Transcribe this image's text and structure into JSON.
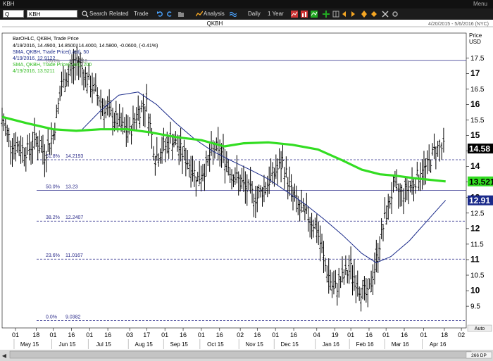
{
  "window": {
    "title": "KBH",
    "menu_label": "Menu"
  },
  "toolbar": {
    "quote_field": "Q",
    "symbol_value": "KBH",
    "search_label": "Search",
    "related_label": "Related",
    "trade_label": "Trade",
    "analysis_label": "Analysis",
    "interval_label": "Daily",
    "range_label": "1 Year"
  },
  "header": {
    "symbol": "QKBH",
    "date_range": "4/20/2015 - 5/6/2016 (NYC)"
  },
  "legend": {
    "line1": "BarOHLC, QKBH, Trade Price",
    "line2": "4/19/2016, 14.4900, 14.8500, 14.4000, 14.5800, -0.0600, (-0.41%)",
    "line3": "SMA, QKBH, Trade Price(Last), 50",
    "line4": "4/19/2016, 12.9122",
    "line5": "SMA, QKBH, Trade Price(Last), 200",
    "line6": "4/19/2016, 13.5211"
  },
  "axis": {
    "price_label": "Price",
    "currency_label": "USD",
    "auto_label": "Auto",
    "dp_label": "266 DP"
  },
  "badges": [
    {
      "text": "14.58",
      "value": 14.58,
      "bg": "#000000",
      "fg": "#ffffff"
    },
    {
      "text": "13.521",
      "value": 13.521,
      "bg": "#33dd22",
      "fg": "#000000"
    },
    {
      "text": "12.91",
      "value": 12.91,
      "bg": "#1a2a8a",
      "fg": "#ffffff"
    }
  ],
  "fibonacci": [
    {
      "pct": "0.0%",
      "value": "9.0382",
      "y": 9.0382,
      "dashed": true
    },
    {
      "pct": "23.6%",
      "value": "11.0167",
      "y": 11.0167,
      "dashed": true
    },
    {
      "pct": "38.2%",
      "value": "12.2407",
      "y": 12.2407,
      "dashed": true
    },
    {
      "pct": "50.0%",
      "value": "13.23",
      "y": 13.23,
      "dashed": false
    },
    {
      "pct": "61.8%",
      "value": "14.2193",
      "y": 14.2193,
      "dashed": true
    },
    {
      "pct": "100.0%",
      "value": "17.4218",
      "y": 17.4218,
      "dashed": false
    }
  ],
  "colors": {
    "bars": "#000000",
    "sma50": "#1a2a8a",
    "sma200": "#33dd22",
    "fib": "#2b2b8a"
  },
  "chart_data": {
    "type": "ohlc",
    "title": "QKBH",
    "ylim": [
      8.8,
      18.3
    ],
    "y_ticks": [
      9.5,
      10,
      10.5,
      11,
      11.5,
      12,
      12.5,
      13,
      13.5,
      14,
      14.5,
      15,
      15.5,
      16,
      16.5,
      17,
      17.5
    ],
    "y_tick_labels": [
      "9.5",
      "10",
      "10.5",
      "11",
      "11.5",
      "12",
      "12.5",
      "13",
      "13.5",
      "14",
      "14.5",
      "15",
      "15.5",
      "16",
      "16.5",
      "17",
      "17.5"
    ],
    "x_range": [
      "2015-04-20",
      "2016-05-06"
    ],
    "x_ticks": [
      {
        "date": "2015-05-01",
        "label": "01",
        "month": "May 15"
      },
      {
        "date": "2015-05-18",
        "label": "18"
      },
      {
        "date": "2015-06-01",
        "label": "01",
        "month": "Jun 15"
      },
      {
        "date": "2015-06-16",
        "label": "16"
      },
      {
        "date": "2015-07-01",
        "label": "01",
        "month": "Jul 15"
      },
      {
        "date": "2015-07-16",
        "label": "16"
      },
      {
        "date": "2015-08-03",
        "label": "03",
        "month": "Aug 15"
      },
      {
        "date": "2015-08-17",
        "label": "17"
      },
      {
        "date": "2015-09-01",
        "label": "01",
        "month": "Sep 15"
      },
      {
        "date": "2015-09-16",
        "label": "16"
      },
      {
        "date": "2015-10-01",
        "label": "01",
        "month": "Oct 15"
      },
      {
        "date": "2015-10-16",
        "label": "16"
      },
      {
        "date": "2015-11-02",
        "label": "02",
        "month": "Nov 15"
      },
      {
        "date": "2015-11-16",
        "label": "16"
      },
      {
        "date": "2015-12-01",
        "label": "01",
        "month": "Dec 15"
      },
      {
        "date": "2015-12-16",
        "label": "16"
      },
      {
        "date": "2016-01-04",
        "label": "04",
        "month": "Jan 16"
      },
      {
        "date": "2016-01-19",
        "label": "19"
      },
      {
        "date": "2016-02-01",
        "label": "01",
        "month": "Feb 16"
      },
      {
        "date": "2016-02-16",
        "label": "16"
      },
      {
        "date": "2016-03-01",
        "label": "01",
        "month": "Mar 16"
      },
      {
        "date": "2016-03-16",
        "label": "16"
      },
      {
        "date": "2016-04-01",
        "label": "01",
        "month": "Apr 16"
      },
      {
        "date": "2016-04-18",
        "label": "18"
      },
      {
        "date": "2016-05-02",
        "label": "02"
      }
    ],
    "close_path": [
      [
        "2015-04-20",
        15.5
      ],
      [
        "2015-04-27",
        14.8
      ],
      [
        "2015-05-04",
        14.6
      ],
      [
        "2015-05-11",
        14.5
      ],
      [
        "2015-05-18",
        14.9
      ],
      [
        "2015-05-25",
        14.4
      ],
      [
        "2015-06-01",
        15.0
      ],
      [
        "2015-06-08",
        16.6
      ],
      [
        "2015-06-15",
        17.1
      ],
      [
        "2015-06-22",
        17.4
      ],
      [
        "2015-06-29",
        16.8
      ],
      [
        "2015-07-06",
        16.4
      ],
      [
        "2015-07-13",
        15.9
      ],
      [
        "2015-07-20",
        15.6
      ],
      [
        "2015-07-27",
        15.3
      ],
      [
        "2015-08-03",
        15.1
      ],
      [
        "2015-08-10",
        15.8
      ],
      [
        "2015-08-17",
        16.0
      ],
      [
        "2015-08-24",
        14.3
      ],
      [
        "2015-08-31",
        14.6
      ],
      [
        "2015-09-07",
        14.9
      ],
      [
        "2015-09-14",
        14.5
      ],
      [
        "2015-09-21",
        14.1
      ],
      [
        "2015-09-28",
        13.6
      ],
      [
        "2015-10-05",
        14.0
      ],
      [
        "2015-10-12",
        14.6
      ],
      [
        "2015-10-19",
        14.4
      ],
      [
        "2015-10-26",
        13.8
      ],
      [
        "2015-11-02",
        13.5
      ],
      [
        "2015-11-09",
        13.2
      ],
      [
        "2015-11-16",
        13.0
      ],
      [
        "2015-11-23",
        13.4
      ],
      [
        "2015-11-30",
        13.8
      ],
      [
        "2015-12-07",
        14.1
      ],
      [
        "2015-12-14",
        13.2
      ],
      [
        "2015-12-21",
        12.6
      ],
      [
        "2015-12-28",
        12.4
      ],
      [
        "2016-01-04",
        12.0
      ],
      [
        "2016-01-11",
        10.8
      ],
      [
        "2016-01-18",
        10.0
      ],
      [
        "2016-01-25",
        10.4
      ],
      [
        "2016-02-01",
        10.7
      ],
      [
        "2016-02-08",
        10.1
      ],
      [
        "2016-02-15",
        9.8
      ],
      [
        "2016-02-22",
        11.0
      ],
      [
        "2016-02-29",
        12.3
      ],
      [
        "2016-03-07",
        13.3
      ],
      [
        "2016-03-14",
        13.1
      ],
      [
        "2016-03-21",
        13.4
      ],
      [
        "2016-03-28",
        13.7
      ],
      [
        "2016-04-04",
        14.0
      ],
      [
        "2016-04-11",
        14.6
      ],
      [
        "2016-04-19",
        14.58
      ]
    ],
    "series": [
      {
        "name": "SMA, QKBH, Trade Price(Last), 50",
        "color": "#1a2a8a",
        "points": [
          [
            "2015-06-25",
            15.2
          ],
          [
            "2015-07-10",
            15.8
          ],
          [
            "2015-07-25",
            16.3
          ],
          [
            "2015-08-10",
            16.4
          ],
          [
            "2015-08-25",
            16.0
          ],
          [
            "2015-09-10",
            15.4
          ],
          [
            "2015-09-25",
            14.9
          ],
          [
            "2015-10-10",
            14.5
          ],
          [
            "2015-10-25",
            14.2
          ],
          [
            "2015-11-10",
            13.9
          ],
          [
            "2015-11-25",
            13.6
          ],
          [
            "2015-12-10",
            13.2
          ],
          [
            "2015-12-25",
            12.8
          ],
          [
            "2016-01-10",
            12.3
          ],
          [
            "2016-01-25",
            11.8
          ],
          [
            "2016-02-10",
            11.2
          ],
          [
            "2016-02-22",
            10.9
          ],
          [
            "2016-03-05",
            11.1
          ],
          [
            "2016-03-20",
            11.6
          ],
          [
            "2016-04-05",
            12.3
          ],
          [
            "2016-04-19",
            12.9122
          ]
        ]
      },
      {
        "name": "SMA, QKBH, Trade Price(Last), 200",
        "color": "#33dd22",
        "points": [
          [
            "2015-04-20",
            15.6
          ],
          [
            "2015-05-10",
            15.4
          ],
          [
            "2015-06-01",
            15.2
          ],
          [
            "2015-06-20",
            15.15
          ],
          [
            "2015-07-10",
            15.2
          ],
          [
            "2015-08-01",
            15.2
          ],
          [
            "2015-08-20",
            15.1
          ],
          [
            "2015-09-10",
            14.95
          ],
          [
            "2015-10-01",
            14.85
          ],
          [
            "2015-10-20",
            14.65
          ],
          [
            "2015-11-05",
            14.75
          ],
          [
            "2015-11-25",
            14.78
          ],
          [
            "2015-12-15",
            14.7
          ],
          [
            "2016-01-05",
            14.55
          ],
          [
            "2016-01-25",
            14.2
          ],
          [
            "2016-02-10",
            13.9
          ],
          [
            "2016-02-25",
            13.75
          ],
          [
            "2016-03-10",
            13.7
          ],
          [
            "2016-03-25",
            13.62
          ],
          [
            "2016-04-19",
            13.5211
          ]
        ]
      }
    ]
  }
}
